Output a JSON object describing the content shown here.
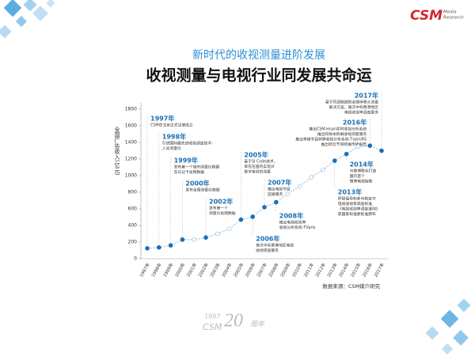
{
  "header": {
    "subtitle": "新时代的收视测量进阶发展",
    "title": "收视测量与电视行业同发展共命运"
  },
  "logo": {
    "name": "CSM",
    "sub": [
      "Media",
      "Research"
    ]
  },
  "chart_data": {
    "type": "line",
    "y_label": "全国广告收入(亿元)",
    "categories": [
      "1997年",
      "1998年",
      "1999年",
      "2000年",
      "2001年",
      "2002年",
      "2003年",
      "2004年",
      "2005年",
      "2006年",
      "2007年",
      "2008年",
      "2009年",
      "2010年",
      "2011年",
      "2012年",
      "2013年",
      "2014年",
      "2015年",
      "2016年",
      "2017年"
    ],
    "values": [
      125,
      135,
      160,
      230,
      230,
      255,
      300,
      360,
      470,
      505,
      620,
      680,
      780,
      870,
      980,
      1070,
      1180,
      1260,
      1350,
      1360,
      1300
    ],
    "color": "#1a6fb4",
    "ylim": [
      0,
      1800
    ],
    "yticks": [
      0,
      200,
      400,
      600,
      800,
      1000,
      1200,
      1400,
      1600,
      1800
    ],
    "annotations": [
      {
        "year": "1997年",
        "lines": [
          "CSM在北京正式注册成立"
        ]
      },
      {
        "year": "1998年",
        "lines": [
          "引进国际最先进收视调查技术-",
          "人员测量仪"
        ]
      },
      {
        "year": "1999年",
        "lines": [
          "发布第一个城市测量仪数据",
          "及日记卡省网数据"
        ]
      },
      {
        "year": "2000年",
        "lines": [
          "发布全国测量仪数据"
        ]
      },
      {
        "year": "2002年",
        "lines": [
          "发布第一个",
          "测量仪省网数据"
        ]
      },
      {
        "year": "2005年",
        "lines": [
          "基于SI Code技术，",
          "率先在国内实现对",
          "数字有线的测量"
        ]
      },
      {
        "year": "2006年",
        "lines": [
          "首次中标香港地区电视",
          "收视调查服务"
        ]
      },
      {
        "year": "2007年",
        "lines": [
          "推出电视节目",
          "监播服务"
        ]
      },
      {
        "year": "2008年",
        "lines": [
          "推出电视收视率",
          "收视分析系统-TVpris"
        ]
      },
      {
        "year": "2013年",
        "lines": [
          "积极倡导和参与制定中",
          "电视收视率调查标准",
          "《电视收视率调查准则》",
          "获国家标准委批准颁布"
        ]
      },
      {
        "year": "2014年",
        "lines": [
          "与微博联手打造",
          "国内首个",
          "微博电视指数"
        ]
      },
      {
        "year": "2016年",
        "lines": [
          "推出CSM-Huan实时收视分析系统",
          "推出同样本跨屏收视测量服务",
          "推出季播节目跨屏收视分析系统-TvprisRS",
          "推出跨云节目跨屏传播报告"
        ]
      },
      {
        "year": "2017年",
        "lines": [
          "基于同源数据的全媒体受众测量",
          "解决方案，再次中标香港地区",
          "电视收视率调查服务"
        ]
      }
    ],
    "source": "数据来源：CSM媒介研究"
  },
  "footer": {
    "year": "1997",
    "brand": "CSM",
    "number": "20",
    "suffix": "周年"
  }
}
